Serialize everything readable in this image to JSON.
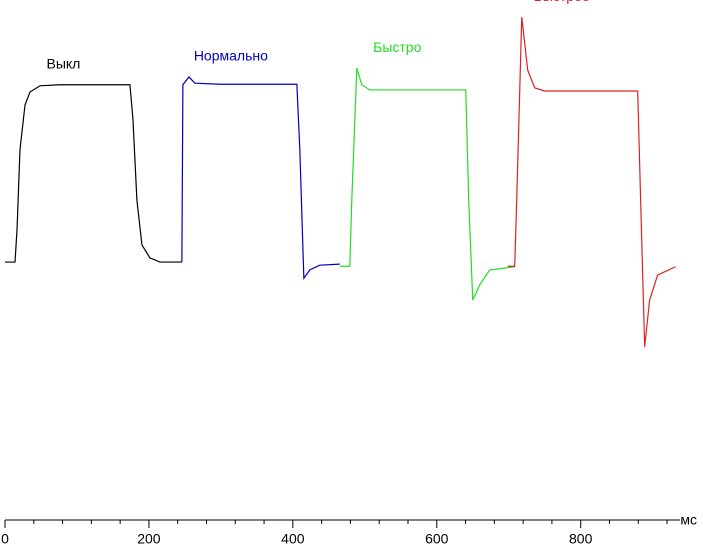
{
  "chart_data": {
    "type": "line",
    "x_label": "мс",
    "xlim": [
      0,
      938
    ],
    "ylim": [
      0,
      100
    ],
    "xticks": [
      0,
      200,
      400,
      600,
      800
    ],
    "xminorticks": [
      40,
      80,
      120,
      160,
      240,
      280,
      320,
      360,
      440,
      480,
      520,
      560,
      640,
      680,
      720,
      760,
      840,
      880,
      920
    ],
    "series": [
      {
        "name": "Выкл",
        "color": "#000000",
        "x": [
          0,
          13.9,
          16.7,
          20.8,
          27.8,
          34.7,
          48.6,
          76.4,
          173.6,
          177.8,
          183.3,
          190.3,
          201.4,
          215.3,
          245.8
        ],
        "values": [
          49.6,
          49.6,
          55.8,
          71.2,
          79.8,
          82.3,
          83.5,
          83.7,
          83.7,
          77.1,
          61.5,
          52.9,
          50.4,
          49.6,
          49.6
        ]
      },
      {
        "name": "Нормально",
        "color": "#0000c0",
        "x": [
          245.8,
          247.2,
          255.6,
          263.9,
          298.6,
          405.6,
          409.7,
          415.3,
          423.6,
          437.5,
          465.3
        ],
        "values": [
          49.6,
          83.7,
          85.2,
          84.0,
          83.8,
          83.8,
          71.2,
          46.5,
          48.1,
          49.0,
          49.2
        ]
      },
      {
        "name": "Быстро",
        "color": "#22dd22",
        "x": [
          465.3,
          479.2,
          481.9,
          488.9,
          495.8,
          506.9,
          640.3,
          644.4,
          650,
          659.7,
          673.6,
          708.3
        ],
        "values": [
          48.8,
          48.8,
          61.5,
          86.9,
          83.7,
          82.7,
          82.7,
          61.5,
          42.3,
          45.2,
          48.1,
          48.7
        ]
      },
      {
        "name": "Быстрее",
        "color": "#dd2222",
        "x": [
          698.6,
          708.3,
          711.1,
          718.1,
          726.4,
          736.1,
          750,
          879.2,
          883.3,
          888.9,
          895.8,
          906.9,
          931.9
        ],
        "values": [
          48.8,
          48.8,
          61.5,
          96.7,
          86.5,
          83.1,
          82.5,
          82.5,
          61.5,
          33.3,
          42.3,
          47.1,
          48.7
        ]
      }
    ]
  }
}
